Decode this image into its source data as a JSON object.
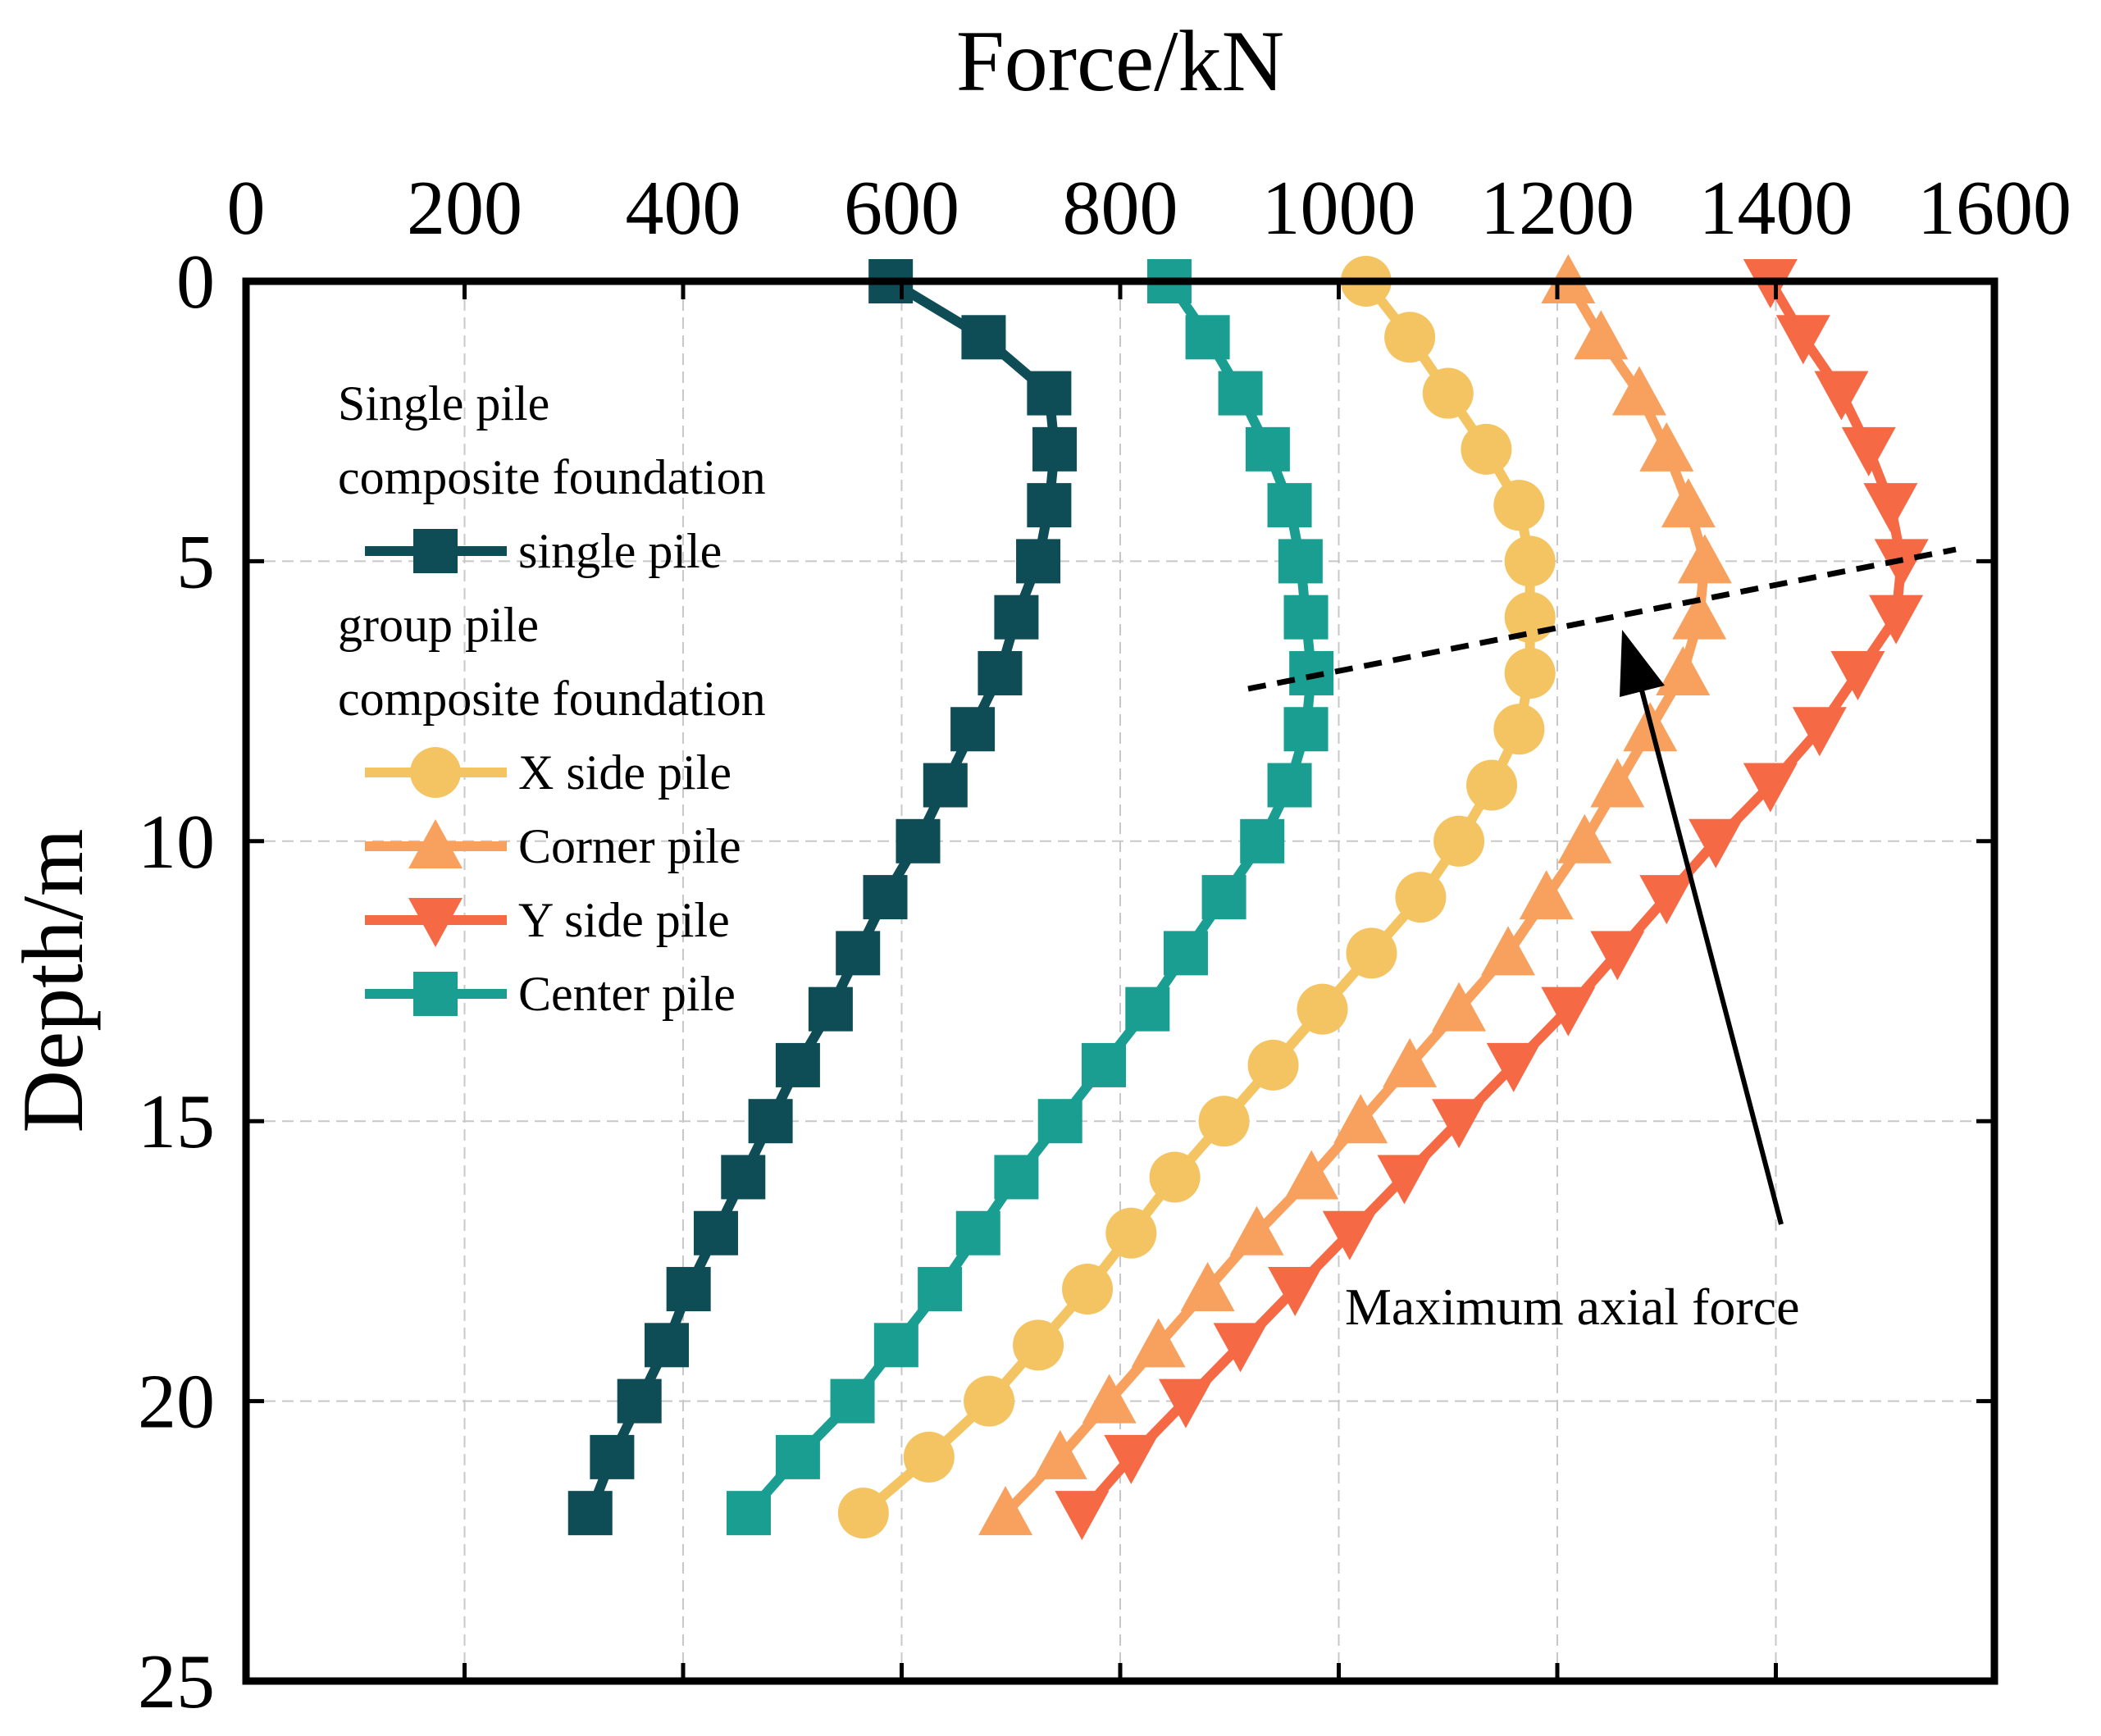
{
  "chart_data": {
    "type": "line",
    "title": "",
    "xlabel": "Force/kN",
    "ylabel": "Depth/m",
    "x_axis_position": "top",
    "y_axis_inverted": true,
    "xlim": [
      0,
      1600
    ],
    "ylim": [
      0,
      25
    ],
    "x_ticks": [
      "0",
      "200",
      "400",
      "600",
      "800",
      "1000",
      "1200",
      "1400",
      "1600"
    ],
    "y_ticks": [
      "0",
      "5",
      "10",
      "15",
      "20",
      "25"
    ],
    "grid": true,
    "legend_position": "top-left",
    "depths": [
      0,
      1,
      2,
      3,
      4,
      5,
      6,
      7,
      8,
      9,
      10,
      11,
      12,
      13,
      14,
      15,
      16,
      17,
      18,
      19,
      20,
      21,
      22
    ],
    "legend_groups": [
      {
        "title_lines": [
          "Single pile",
          "composite foundation"
        ],
        "series_indices": [
          0
        ]
      },
      {
        "title_lines": [
          "group pile",
          "composite foundation"
        ],
        "series_indices": [
          1,
          2,
          3,
          4
        ]
      }
    ],
    "series": [
      {
        "name": "single pile",
        "color": "#0e4c56",
        "marker": "square",
        "values": [
          590,
          675,
          735,
          740,
          735,
          725,
          705,
          690,
          665,
          640,
          615,
          585,
          560,
          535,
          505,
          480,
          455,
          430,
          405,
          385,
          360,
          335,
          315
        ]
      },
      {
        "name": "X side pile",
        "color": "#f3c461",
        "marker": "circle",
        "values": [
          1025,
          1065,
          1100,
          1135,
          1165,
          1175,
          1175,
          1175,
          1165,
          1140,
          1110,
          1075,
          1030,
          985,
          940,
          895,
          850,
          810,
          770,
          725,
          680,
          625,
          565
        ]
      },
      {
        "name": "Corner pile",
        "color": "#f8a05e",
        "marker": "triangle-up",
        "values": [
          1210,
          1240,
          1275,
          1300,
          1320,
          1335,
          1330,
          1315,
          1285,
          1255,
          1225,
          1190,
          1155,
          1110,
          1065,
          1020,
          975,
          925,
          880,
          835,
          790,
          745,
          695
        ]
      },
      {
        "name": "Y side pile",
        "color": "#f56a45",
        "marker": "triangle-down",
        "values": [
          1395,
          1425,
          1460,
          1485,
          1505,
          1515,
          1510,
          1475,
          1440,
          1395,
          1345,
          1300,
          1255,
          1210,
          1160,
          1110,
          1060,
          1010,
          960,
          910,
          860,
          810,
          765
        ]
      },
      {
        "name": "Center pile",
        "color": "#1a9e92",
        "marker": "square",
        "values": [
          845,
          880,
          910,
          935,
          955,
          965,
          970,
          975,
          970,
          955,
          930,
          895,
          860,
          825,
          785,
          745,
          705,
          670,
          635,
          595,
          555,
          505,
          460
        ]
      }
    ],
    "annotations": [
      {
        "text": "Maximum axial force",
        "type": "arrow",
        "dashed_line_through_maxima": true
      }
    ]
  }
}
